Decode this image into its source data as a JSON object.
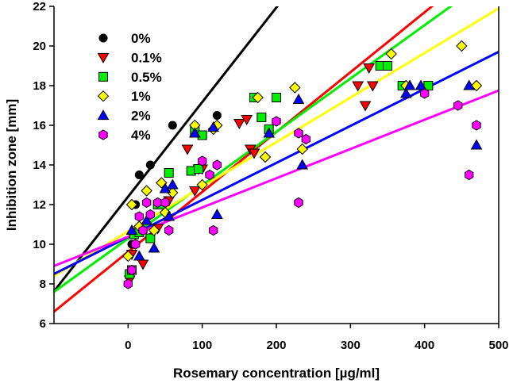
{
  "chart_data": {
    "type": "scatter",
    "title": "",
    "xlabel": "Rosemary concentration [µg/ml]",
    "ylabel": "Inhibition zone [mm]",
    "xlim": [
      -100,
      500
    ],
    "ylim": [
      6,
      22
    ],
    "xticks": [
      0,
      100,
      200,
      300,
      400,
      500
    ],
    "yticks": [
      6,
      8,
      10,
      12,
      14,
      16,
      18,
      20,
      22
    ],
    "grid": false,
    "legend_position": "top-left",
    "series": [
      {
        "name": "0%",
        "marker": "circle",
        "color": "#000000",
        "fit": {
          "slope": 0.0477,
          "intercept": 12.4
        },
        "points": [
          [
            0,
            8
          ],
          [
            5,
            10
          ],
          [
            10,
            12
          ],
          [
            15,
            13.5
          ],
          [
            30,
            14
          ],
          [
            60,
            16
          ],
          [
            120,
            16.5
          ]
        ]
      },
      {
        "name": "0.1%",
        "marker": "triangle-down",
        "color": "#ff0000",
        "fit": {
          "slope": 0.0302,
          "intercept": 9.62
        },
        "points": [
          [
            2,
            8.2
          ],
          [
            5,
            9.5
          ],
          [
            20,
            9
          ],
          [
            40,
            10.8
          ],
          [
            55,
            12.2
          ],
          [
            80,
            14.8
          ],
          [
            90,
            12.7
          ],
          [
            95,
            13.8
          ],
          [
            100,
            13.8
          ],
          [
            150,
            16.1
          ],
          [
            160,
            16.3
          ],
          [
            165,
            14.8
          ],
          [
            170,
            14.6
          ],
          [
            310,
            18
          ],
          [
            320,
            17
          ],
          [
            325,
            18.9
          ],
          [
            330,
            18
          ]
        ]
      },
      {
        "name": "0.5%",
        "marker": "square",
        "color": "#00ee00",
        "fit": {
          "slope": 0.0269,
          "intercept": 10.29
        },
        "points": [
          [
            2,
            8.5
          ],
          [
            5,
            8.7
          ],
          [
            8,
            10.5
          ],
          [
            15,
            10.6
          ],
          [
            30,
            10.3
          ],
          [
            40,
            12
          ],
          [
            45,
            12
          ],
          [
            55,
            13.6
          ],
          [
            90,
            15.7
          ],
          [
            100,
            15.5
          ],
          [
            85,
            13.7
          ],
          [
            95,
            13.8
          ],
          [
            170,
            17.4
          ],
          [
            180,
            16.4
          ],
          [
            190,
            15.8
          ],
          [
            200,
            17.4
          ],
          [
            340,
            19
          ],
          [
            350,
            19
          ],
          [
            370,
            18
          ],
          [
            405,
            18
          ]
        ]
      },
      {
        "name": "1%",
        "marker": "diamond",
        "color": "#ffff00",
        "fit": {
          "slope": 0.0225,
          "intercept": 10.65
        },
        "points": [
          [
            0,
            9.4
          ],
          [
            5,
            12
          ],
          [
            15,
            10.9
          ],
          [
            25,
            12.7
          ],
          [
            35,
            10.7
          ],
          [
            45,
            13.1
          ],
          [
            50,
            11.6
          ],
          [
            60,
            12.6
          ],
          [
            90,
            16
          ],
          [
            100,
            13
          ],
          [
            115,
            15.8
          ],
          [
            120,
            16
          ],
          [
            175,
            17.4
          ],
          [
            185,
            14.4
          ],
          [
            225,
            17.9
          ],
          [
            235,
            14.8
          ],
          [
            355,
            19.6
          ],
          [
            375,
            18
          ],
          [
            450,
            20
          ],
          [
            470,
            18
          ]
        ]
      },
      {
        "name": "2%",
        "marker": "triangle-up",
        "color": "#0000ff",
        "fit": {
          "slope": 0.01867,
          "intercept": 10.37
        },
        "points": [
          [
            5,
            10.7
          ],
          [
            15,
            9.4
          ],
          [
            25,
            11.2
          ],
          [
            35,
            9.8
          ],
          [
            50,
            12.8
          ],
          [
            55,
            11.4
          ],
          [
            60,
            13
          ],
          [
            90,
            15.6
          ],
          [
            115,
            15.9
          ],
          [
            120,
            11.5
          ],
          [
            190,
            15.6
          ],
          [
            230,
            17.3
          ],
          [
            235,
            14
          ],
          [
            375,
            17.6
          ],
          [
            380,
            18
          ],
          [
            395,
            18
          ],
          [
            460,
            18
          ],
          [
            470,
            15
          ]
        ]
      },
      {
        "name": "4%",
        "marker": "hexagon",
        "color": "#ff00ff",
        "fit": {
          "slope": 0.01475,
          "intercept": 10.38
        },
        "points": [
          [
            0,
            8
          ],
          [
            5,
            8.7
          ],
          [
            10,
            10
          ],
          [
            15,
            11.4
          ],
          [
            20,
            10.7
          ],
          [
            25,
            12.1
          ],
          [
            30,
            11.5
          ],
          [
            40,
            12.1
          ],
          [
            50,
            12.1
          ],
          [
            55,
            10.7
          ],
          [
            100,
            14.2
          ],
          [
            110,
            13.5
          ],
          [
            120,
            14
          ],
          [
            115,
            10.7
          ],
          [
            200,
            16.2
          ],
          [
            230,
            15.6
          ],
          [
            230,
            12.1
          ],
          [
            240,
            15.3
          ],
          [
            400,
            17.6
          ],
          [
            445,
            17
          ],
          [
            460,
            13.5
          ],
          [
            470,
            16
          ]
        ]
      }
    ]
  }
}
